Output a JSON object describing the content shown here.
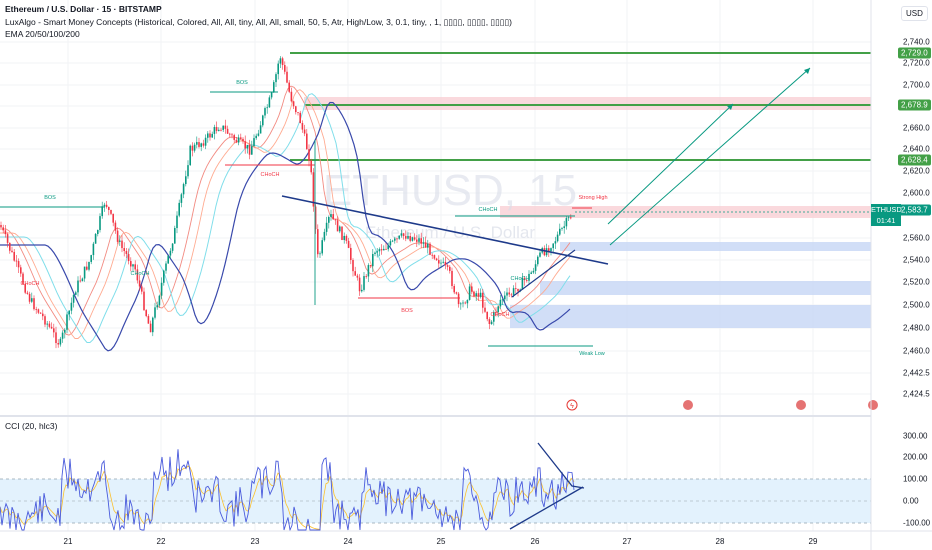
{
  "header": {
    "title": "Ethereum / U.S. Dollar · 15 · BITSTAMP",
    "indicator1": "LuxAlgo - Smart Money Concepts (Historical, Colored, All, All, tiny, All, All, small, 50, 5, Atr, High/Low, 3, 0.1, tiny, , 1, ▯▯▯▯, ▯▯▯▯, ▯▯▯▯)",
    "indicator2": "EMA 20/50/100/200"
  },
  "watermark": {
    "symbol": "ETHUSD, 15",
    "name": "Ethereum / U.S. Dollar"
  },
  "price_scale": {
    "currency_button": "USD",
    "ticks": [
      "2,740.0",
      "2,720.0",
      "2,700.0",
      "2,660.0",
      "2,640.0",
      "2,620.0",
      "2,600.0",
      "2,560.0",
      "2,540.0",
      "2,520.0",
      "2,500.0",
      "2,480.0",
      "2,460.0",
      "2,442.5",
      "2,424.5"
    ],
    "badges": [
      {
        "label": "2,729.0",
        "color": "#43a047"
      },
      {
        "label": "2,678.9",
        "color": "#43a047"
      },
      {
        "label": "2,628.4",
        "color": "#43a047"
      },
      {
        "label": "2,583.7",
        "color": "#089981"
      }
    ],
    "symbol_badge": {
      "line1": "ETHUSD",
      "line2": "01:41"
    }
  },
  "cci": {
    "title": "CCI (20, hlc3)",
    "ticks": [
      "300.00",
      "200.00",
      "100.00",
      "0.00",
      "-100.00"
    ]
  },
  "time_axis": [
    "21",
    "22",
    "23",
    "24",
    "25",
    "26",
    "27",
    "28",
    "29"
  ],
  "smc_labels": {
    "bos": "BOS",
    "choch": "CHoCH",
    "strong_high": "Strong High",
    "weak_low": "Weak Low"
  },
  "colors": {
    "bull": "#089981",
    "bear": "#f23645",
    "level_green": "#43a047",
    "trend_blue": "#1e3a8a",
    "cci_line": "#4a5bdc",
    "cci_band": "#e3f2fd"
  }
}
